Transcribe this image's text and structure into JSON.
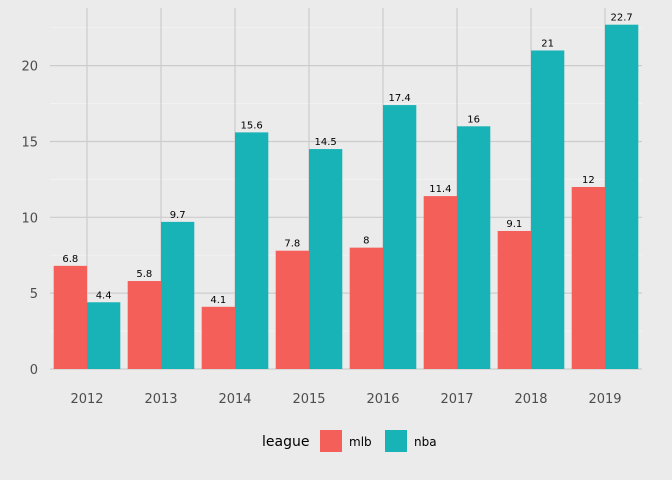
{
  "chart_data": {
    "type": "bar",
    "categories": [
      "2012",
      "2013",
      "2014",
      "2015",
      "2016",
      "2017",
      "2018",
      "2019"
    ],
    "series": [
      {
        "name": "mlb",
        "color": "#f45f5a",
        "values": [
          6.8,
          5.8,
          4.1,
          7.8,
          8,
          11.4,
          9.1,
          12
        ],
        "labels": [
          "6.8",
          "5.8",
          "4.1",
          "7.8",
          "8",
          "11.4",
          "9.1",
          "12"
        ]
      },
      {
        "name": "nba",
        "color": "#18b3b7",
        "values": [
          4.4,
          9.7,
          15.6,
          14.5,
          17.4,
          16,
          21,
          22.7
        ],
        "labels": [
          "4.4",
          "9.7",
          "15.6",
          "14.5",
          "17.4",
          "16",
          "21",
          "22.7"
        ]
      }
    ],
    "y_ticks": [
      0,
      5,
      10,
      15,
      20
    ],
    "y_tick_labels": [
      "0",
      "5",
      "10",
      "15",
      "20"
    ],
    "ylim": [
      0,
      23.8
    ],
    "legend": {
      "title": "league",
      "position": "bottom"
    },
    "grid": true,
    "background": "#ebebeb",
    "grid_color": "#cccccc"
  }
}
